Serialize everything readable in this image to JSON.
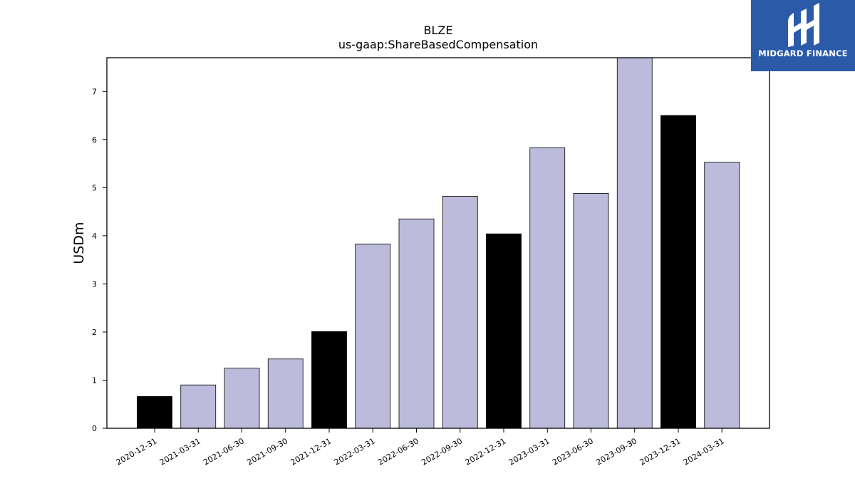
{
  "logo": {
    "text": "MIDGARD FINANCE"
  },
  "chart_data": {
    "type": "bar",
    "title": "BLZE",
    "subtitle": "us-gaap:ShareBasedCompensation",
    "xlabel": "",
    "ylabel": "USDm",
    "ylim": [
      0,
      7.7
    ],
    "yticks": [
      0,
      1,
      2,
      3,
      4,
      5,
      6,
      7
    ],
    "categories": [
      "2020-12-31",
      "2021-03-31",
      "2021-06-30",
      "2021-09-30",
      "2021-12-31",
      "2022-03-31",
      "2022-06-30",
      "2022-09-30",
      "2022-12-31",
      "2023-03-31",
      "2023-06-30",
      "2023-09-30",
      "2023-12-31",
      "2024-03-31"
    ],
    "values": [
      0.66,
      0.9,
      1.25,
      1.44,
      2.01,
      3.83,
      4.35,
      4.82,
      4.04,
      5.83,
      4.88,
      7.75,
      6.5,
      5.53
    ],
    "colors": [
      "#000000",
      "#bdbbdb",
      "#bdbbdb",
      "#bdbbdb",
      "#000000",
      "#bdbbdb",
      "#bdbbdb",
      "#bdbbdb",
      "#000000",
      "#bdbbdb",
      "#bdbbdb",
      "#bdbbdb",
      "#000000",
      "#bdbbdb"
    ],
    "grid": false,
    "legend": "none"
  }
}
